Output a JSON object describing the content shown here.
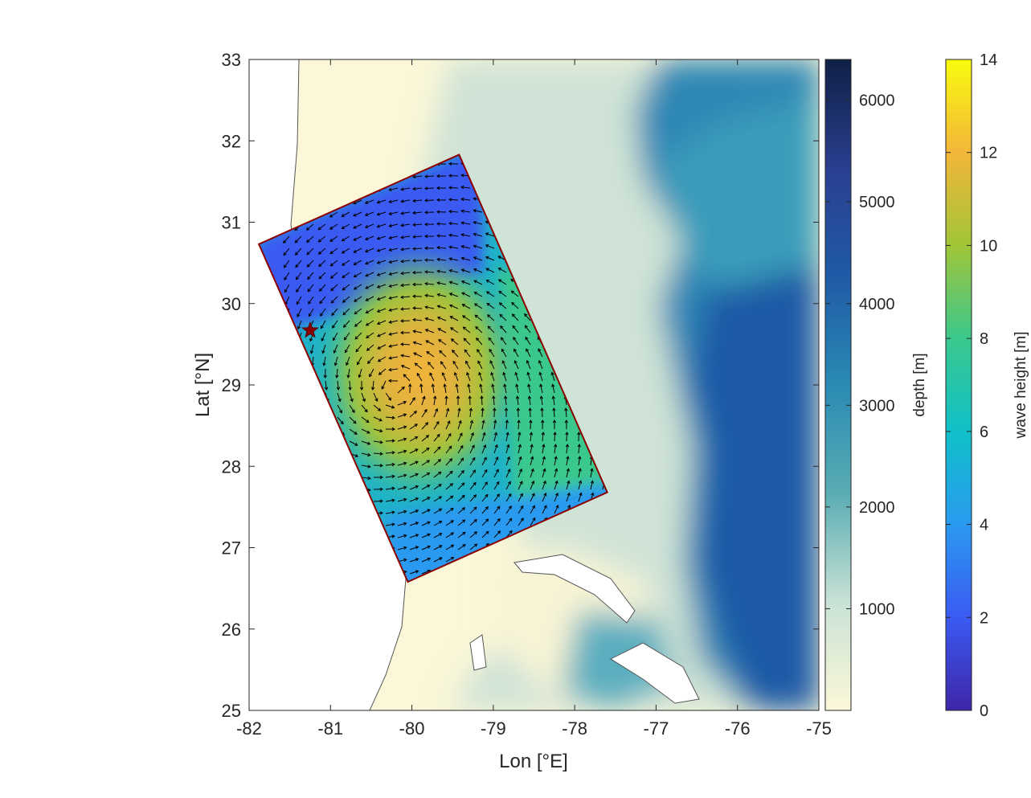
{
  "chart_data": {
    "type": "heatmap",
    "xlabel": "Lon [°E]",
    "ylabel": "Lat [°N]",
    "xlim": [
      -82,
      -75
    ],
    "ylim": [
      25,
      33
    ],
    "xticks": [
      "-82",
      "-81",
      "-80",
      "-79",
      "-78",
      "-77",
      "-76",
      "-75"
    ],
    "yticks": [
      "25",
      "26",
      "27",
      "28",
      "29",
      "30",
      "31",
      "32",
      "33"
    ],
    "grid": false,
    "colorbars": [
      {
        "label": "depth [m]",
        "range": [
          0,
          6400
        ],
        "ticks": [
          "1000",
          "2000",
          "3000",
          "4000",
          "5000",
          "6000"
        ],
        "colormap": [
          "#fbf8d8",
          "#c9e2d6",
          "#5aadb3",
          "#2a8ab3",
          "#1f5aa6",
          "#2a3f8f",
          "#0f1f45"
        ]
      },
      {
        "label": "wave height [m]",
        "range": [
          0,
          14
        ],
        "ticks": [
          "0",
          "2",
          "4",
          "6",
          "8",
          "10",
          "12",
          "14"
        ],
        "colormap": [
          "#3e26a8",
          "#3b5af2",
          "#2a9af0",
          "#10c0c9",
          "#3bc88d",
          "#a1c538",
          "#f3b63a",
          "#f9fb0e"
        ]
      }
    ],
    "domain_box_corners_lonlat": [
      [
        -81.88,
        30.73
      ],
      [
        -79.42,
        31.83
      ],
      [
        -77.6,
        27.68
      ],
      [
        -80.05,
        26.58
      ]
    ],
    "storm_center_lonlat": [
      -80.2,
      28.95
    ],
    "peak_wave_height_m": 12.5,
    "marker_star_lonlat": [
      -81.25,
      29.67
    ],
    "colors": {
      "box_outline": "#8b0000",
      "star": "#8b0000",
      "coastline": "#555555",
      "arrows": "#000000"
    }
  }
}
